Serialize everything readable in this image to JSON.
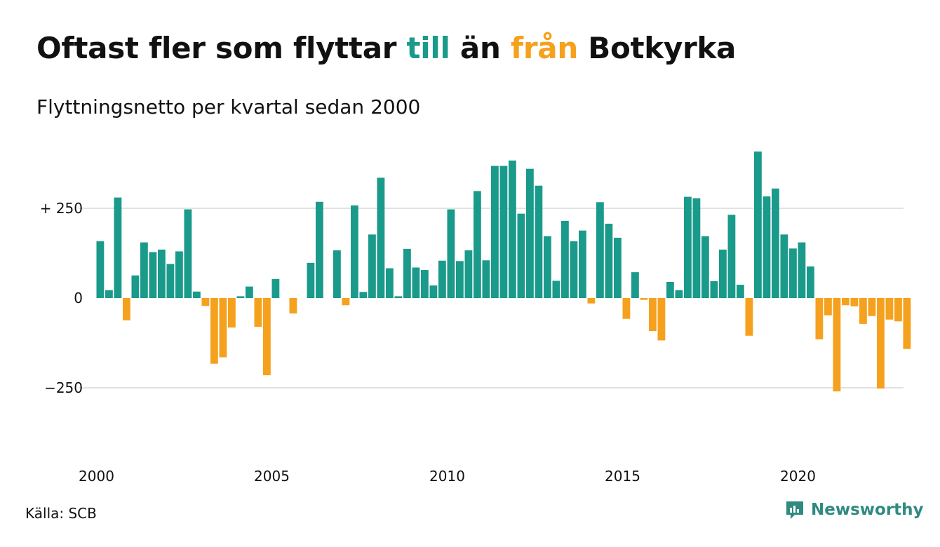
{
  "title_parts": {
    "part1": "Oftast fler som flyttar ",
    "till": "till",
    "part2": " än ",
    "fran": "från",
    "part3": " Botkyrka"
  },
  "subtitle": "Flyttningsnetto per kvartal sedan 2000",
  "source": "Källa: SCB",
  "brand": "Newsworthy",
  "colors": {
    "positive": "#1a9a8a",
    "negative": "#f5a11d",
    "grid": "#e2e2e2",
    "brand": "#2f8a80"
  },
  "chart_data": {
    "type": "bar",
    "x_start": "2000 Q1",
    "xticks": [
      "2000",
      "2005",
      "2010",
      "2015",
      "2020"
    ],
    "yticks": [
      {
        "value": 250,
        "label": "+ 250"
      },
      {
        "value": 0,
        "label": "0"
      },
      {
        "value": -250,
        "label": "−250"
      }
    ],
    "ylim": [
      -390,
      430
    ],
    "values": [
      158,
      22,
      280,
      -62,
      63,
      155,
      128,
      135,
      95,
      130,
      247,
      18,
      -22,
      -183,
      -165,
      -82,
      5,
      32,
      -80,
      -215,
      53,
      0,
      -43,
      0,
      98,
      268,
      0,
      133,
      -20,
      258,
      17,
      177,
      335,
      83,
      5,
      137,
      85,
      78,
      35,
      104,
      247,
      103,
      133,
      298,
      105,
      368,
      368,
      383,
      235,
      360,
      313,
      172,
      48,
      215,
      158,
      188,
      -15,
      267,
      207,
      168,
      -58,
      72,
      -5,
      -92,
      -118,
      45,
      22,
      282,
      278,
      172,
      47,
      135,
      232,
      37,
      -105,
      408,
      283,
      305,
      177,
      138,
      155,
      88,
      -115,
      -48,
      -260,
      -20,
      -23,
      -72,
      -50,
      -252,
      -60,
      -65,
      -142
    ]
  }
}
